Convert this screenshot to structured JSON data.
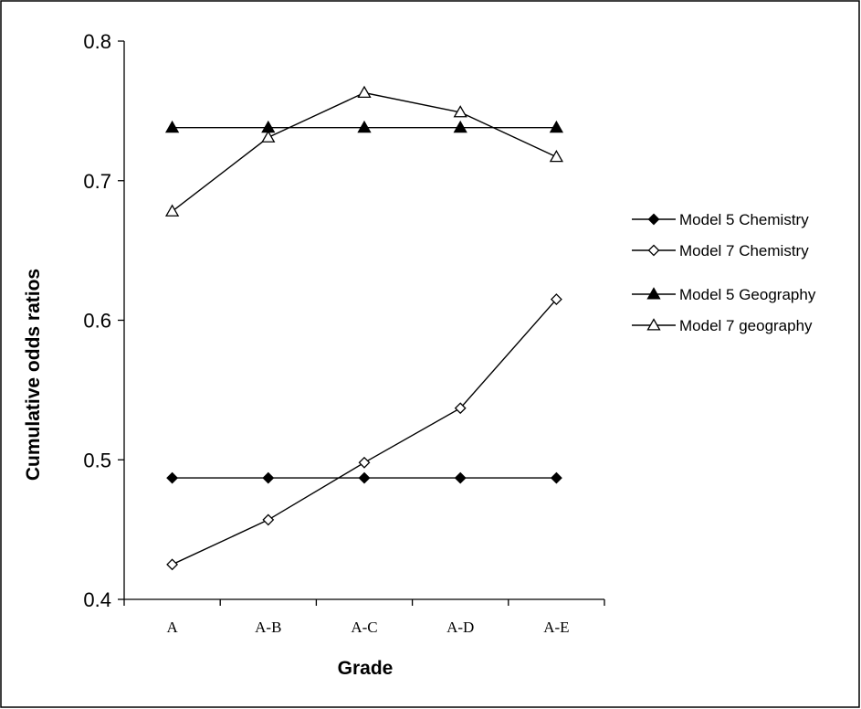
{
  "chart_data": {
    "type": "line",
    "categories": [
      "A",
      "A-B",
      "A-C",
      "A-D",
      "A-E"
    ],
    "xlabel": "Grade",
    "ylabel": "Cumulative odds ratios",
    "ylim": [
      0.4,
      0.8
    ],
    "yticks": [
      0.4,
      0.5,
      0.6,
      0.7,
      0.8
    ],
    "ytick_labels": [
      "0.4",
      "0.5",
      "0.6",
      "0.7",
      "0.8"
    ],
    "grid": false,
    "legend_position": "right",
    "series": [
      {
        "name": "Model 5 Chemistry",
        "marker": "diamond-filled",
        "values": [
          0.487,
          0.487,
          0.487,
          0.487,
          0.487
        ]
      },
      {
        "name": "Model 7 Chemistry",
        "marker": "diamond-open",
        "values": [
          0.425,
          0.457,
          0.498,
          0.537,
          0.615
        ]
      },
      {
        "name": "Model 5 Geography",
        "marker": "triangle-filled",
        "values": [
          0.738,
          0.738,
          0.738,
          0.738,
          0.738
        ]
      },
      {
        "name": "Model 7 geography",
        "marker": "triangle-open",
        "values": [
          0.678,
          0.731,
          0.763,
          0.749,
          0.717
        ]
      }
    ],
    "colors": {
      "line": "#000000",
      "background": "#ffffff"
    }
  }
}
